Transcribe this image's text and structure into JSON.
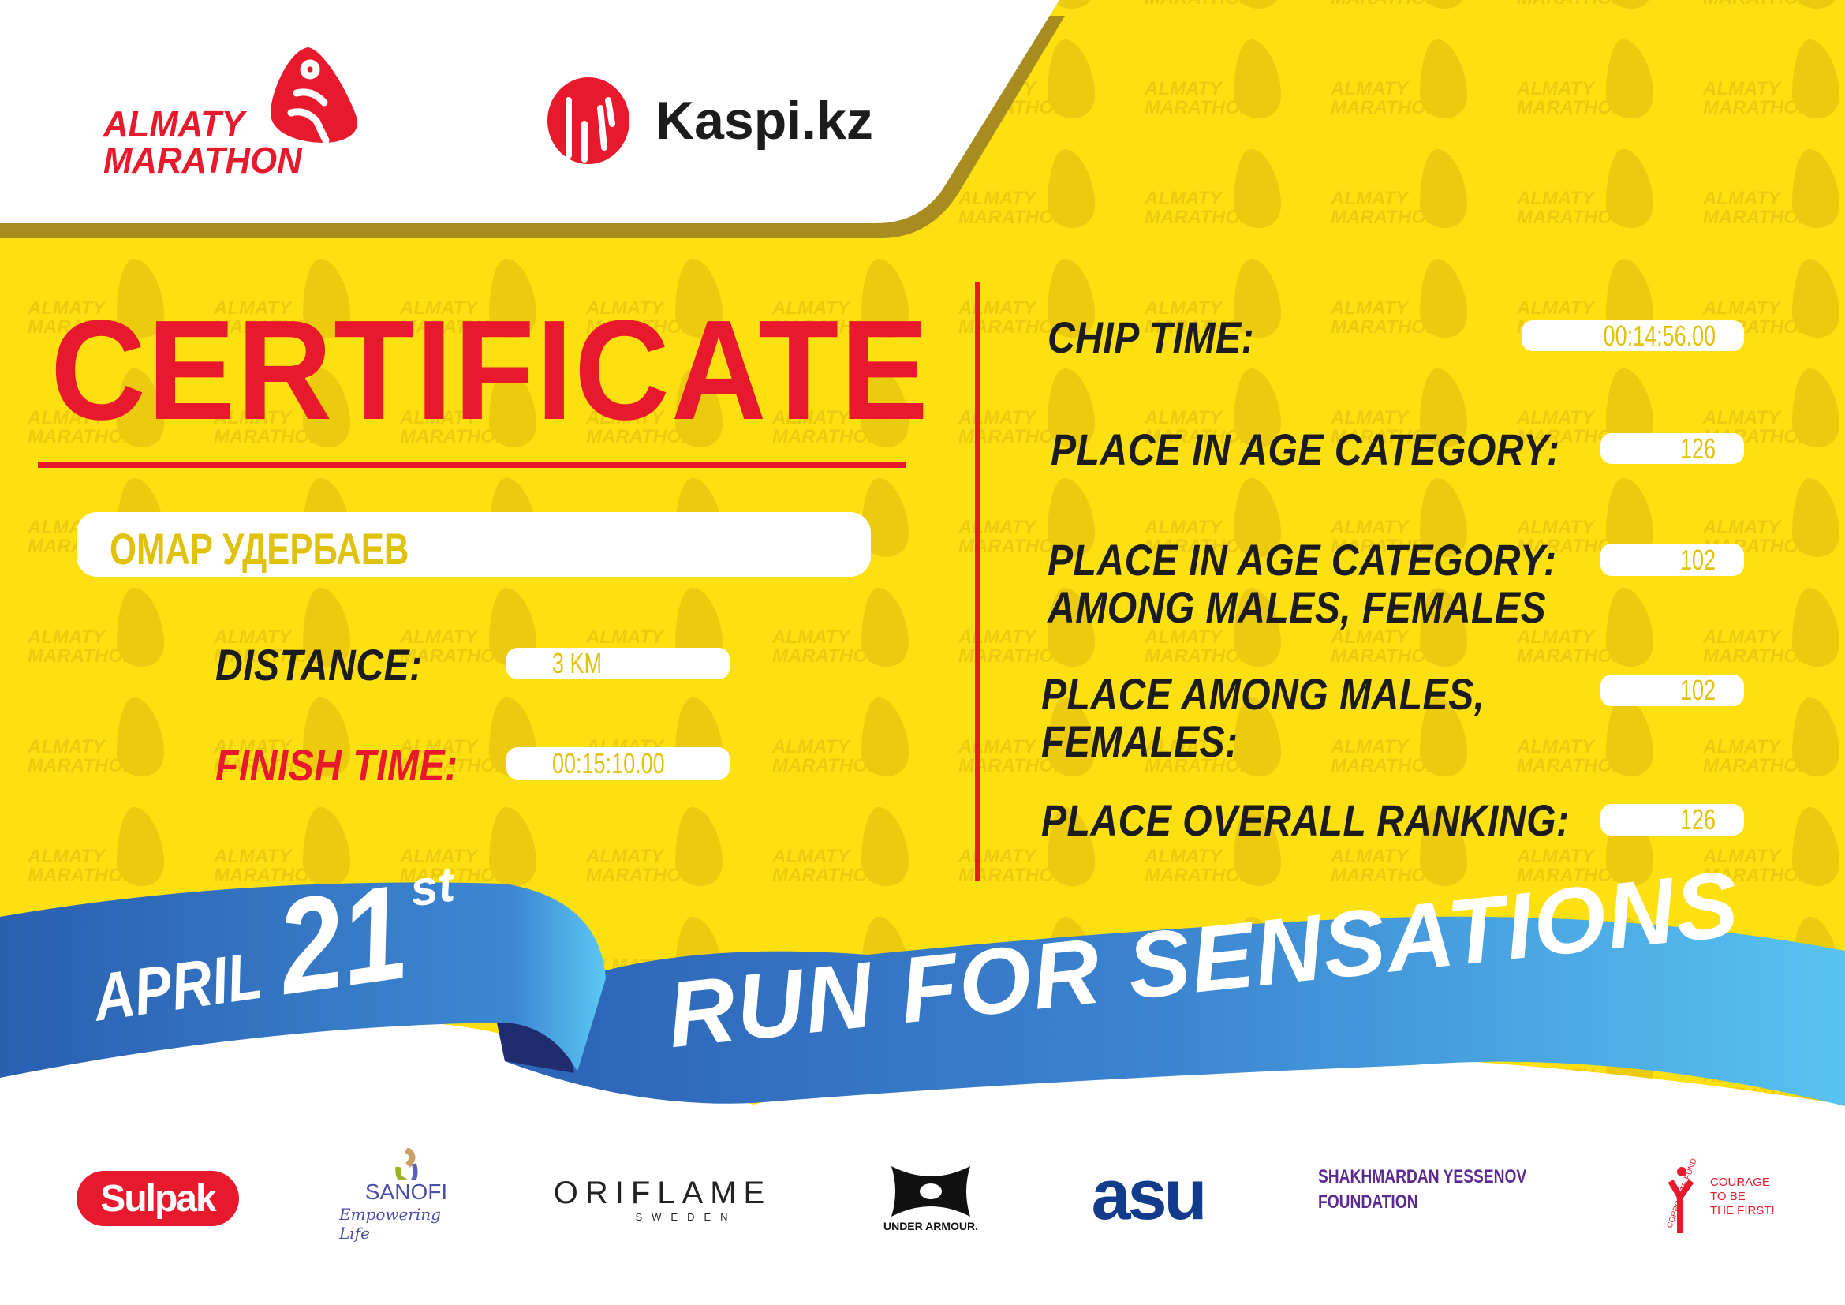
{
  "colors": {
    "background": "#fde012",
    "red": "#e8192c",
    "blue": "#3a82cf",
    "light_blue": "#55c1f0",
    "gold_shadow": "#a88c1f"
  },
  "watermark": {
    "line1": "ALMATY",
    "line2": "MARATHON"
  },
  "header": {
    "event_logo": {
      "line1": "ALMATY",
      "line2": "MARATHON",
      "icon": "runner-drop-icon"
    },
    "sponsor_logo": {
      "text": "Kaspi.kz",
      "icon": "kaspi-figures-icon"
    }
  },
  "certificate": {
    "title": "CERTIFICATE",
    "participant_name": "ОМАР УДЕРБАЕВ",
    "distance": {
      "label": "DISTANCE:",
      "value": "3 KM"
    },
    "finish_time": {
      "label": "FINISH TIME:",
      "value": "00:15:10.00"
    },
    "chip_time": {
      "label": "CHIP TIME:",
      "value": "00:14:56.00"
    },
    "place_age_category": {
      "label": "PLACE IN AGE CATEGORY:",
      "value": "126"
    },
    "place_age_category_gender": {
      "label_line1": "PLACE IN AGE CATEGORY:",
      "label_line2": "AMONG MALES, FEMALES",
      "value": "102"
    },
    "place_gender": {
      "label_line1": "PLACE AMONG MALES,",
      "label_line2": "FEMALES:",
      "value": "102"
    },
    "place_overall": {
      "label": "PLACE OVERALL RANKING:",
      "value": "126"
    }
  },
  "banner": {
    "month": "APRIL",
    "day": "21",
    "suffix": "st",
    "slogan": "RUN FOR SENSATIONS"
  },
  "sponsors": {
    "sulpak": "Sulpak",
    "sanofi": {
      "name": "SANOFI",
      "tagline": "Empowering Life"
    },
    "oriflame": {
      "name": "ORIFLAME",
      "sub": "SWEDEN"
    },
    "under_armour": "UNDER ARMOUR.",
    "asu": "asu",
    "yessenov": {
      "line1": "SHAKHMARDAN YESSENOV",
      "line2": "FOUNDATION"
    },
    "courage": {
      "arc": "CORPORATE FUND",
      "line1": "COURAGE",
      "line2": "TO BE",
      "line3": "THE FIRST!"
    }
  }
}
